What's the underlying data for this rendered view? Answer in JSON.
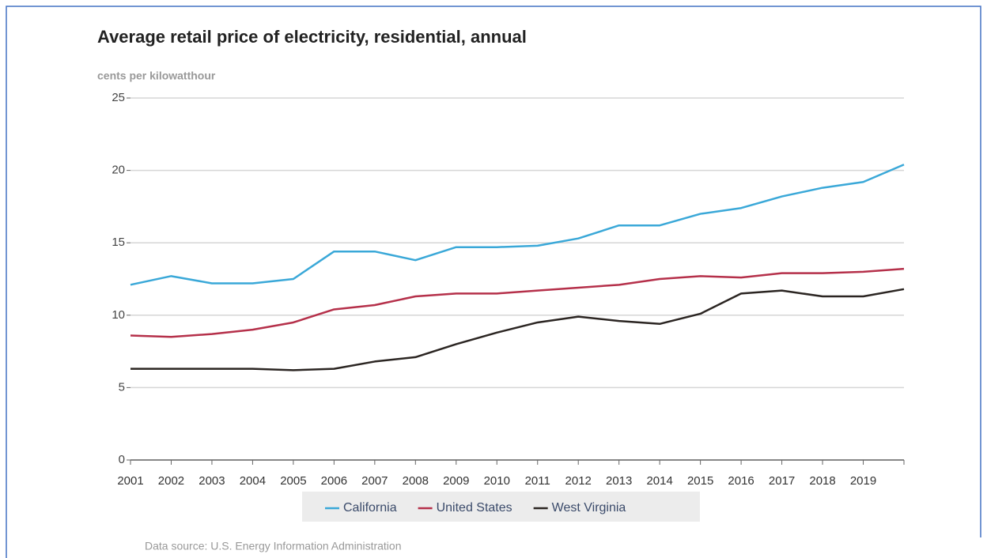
{
  "chart_data": {
    "type": "line",
    "title": "Average retail price of electricity, residential, annual",
    "subtitle": "cents per kilowatthour",
    "source": "Data source: U.S. Energy Information Administration",
    "categories": [
      "2001",
      "2002",
      "2003",
      "2004",
      "2005",
      "2006",
      "2007",
      "2008",
      "2009",
      "2010",
      "2011",
      "2012",
      "2013",
      "2014",
      "2015",
      "2016",
      "2017",
      "2018",
      "2019",
      null
    ],
    "series": [
      {
        "name": "California",
        "color": "#3aa8d8",
        "values": [
          12.1,
          12.7,
          12.2,
          12.2,
          12.5,
          14.4,
          14.4,
          13.8,
          14.7,
          14.7,
          14.8,
          15.3,
          16.2,
          16.2,
          17.0,
          17.4,
          18.2,
          18.8,
          19.2,
          20.4
        ]
      },
      {
        "name": "United States",
        "color": "#b5304a",
        "values": [
          8.6,
          8.5,
          8.7,
          9.0,
          9.5,
          10.4,
          10.7,
          11.3,
          11.5,
          11.5,
          11.7,
          11.9,
          12.1,
          12.5,
          12.7,
          12.6,
          12.9,
          12.9,
          13.0,
          13.2
        ]
      },
      {
        "name": "West Virginia",
        "color": "#2b2522",
        "values": [
          6.3,
          6.3,
          6.3,
          6.3,
          6.2,
          6.3,
          6.8,
          7.1,
          8.0,
          8.8,
          9.5,
          9.9,
          9.6,
          9.4,
          10.1,
          11.5,
          11.7,
          11.3,
          11.3,
          11.8
        ]
      }
    ],
    "ylim": [
      0,
      25
    ],
    "yticks": [
      0,
      5,
      10,
      15,
      20,
      25
    ],
    "grid": true,
    "legend": "bottom"
  }
}
